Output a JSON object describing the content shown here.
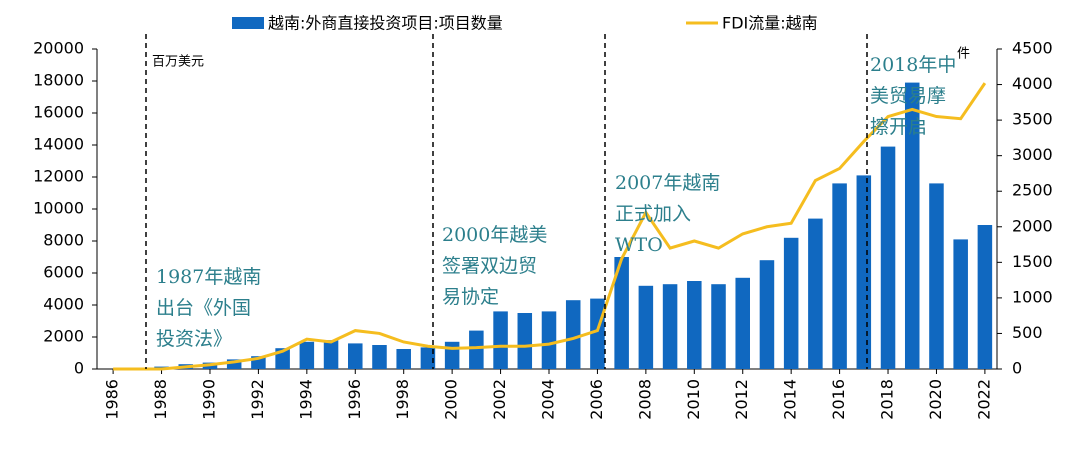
{
  "chart_data": {
    "type": "combo",
    "categories": [
      "1986",
      null,
      "1988",
      null,
      "1990",
      null,
      "1992",
      null,
      "1994",
      null,
      "1996",
      null,
      "1998",
      null,
      "2000",
      null,
      "2002",
      null,
      "2004",
      null,
      "2006",
      null,
      "2008",
      null,
      "2010",
      null,
      "2012",
      null,
      "2014",
      null,
      "2016",
      null,
      "2018",
      null,
      "2020",
      null,
      "2022"
    ],
    "series": [
      {
        "name": "越南:外商直接投资项目:项目数量",
        "type": "bar",
        "color": "#1068c0",
        "values": [
          0,
          0,
          150,
          300,
          400,
          600,
          800,
          1300,
          1700,
          1800,
          1600,
          1500,
          1250,
          1350,
          1700,
          2400,
          3600,
          3500,
          3600,
          4300,
          4400,
          7000,
          5200,
          5300,
          5500,
          5300,
          5700,
          6800,
          8200,
          9400,
          11600,
          12100,
          13900,
          17900,
          11600,
          8100,
          9000
        ]
      },
      {
        "name": "FDI流量:越南",
        "type": "line",
        "axis": "y2",
        "color": "#f5bd1f",
        "values": [
          0,
          0,
          0,
          30,
          60,
          100,
          150,
          250,
          420,
          380,
          540,
          500,
          380,
          320,
          290,
          300,
          320,
          320,
          350,
          430,
          540,
          1550,
          2200,
          1700,
          1800,
          1700,
          1900,
          2000,
          2050,
          2650,
          2820,
          3200,
          3550,
          3650,
          3550,
          3520,
          4020
        ]
      }
    ],
    "ylim": [
      0,
      20000
    ],
    "yticks": [
      0,
      2000,
      4000,
      6000,
      8000,
      10000,
      12000,
      14000,
      16000,
      18000,
      20000
    ],
    "y2lim": [
      0,
      4500
    ],
    "y2ticks": [
      0,
      500,
      1000,
      1500,
      2000,
      2500,
      3000,
      3500,
      4000,
      4500
    ],
    "y_unit": "百万美元",
    "y2_unit": "件",
    "annotations": [
      [
        "1987年越南",
        "出台《外国",
        "投资法》"
      ],
      [
        "2000年越美",
        "签署双边贸",
        "易协定"
      ],
      [
        "2007年越南",
        "正式加入",
        "WTO"
      ],
      [
        "2018年中",
        "美贸易摩",
        "擦开启"
      ]
    ]
  }
}
